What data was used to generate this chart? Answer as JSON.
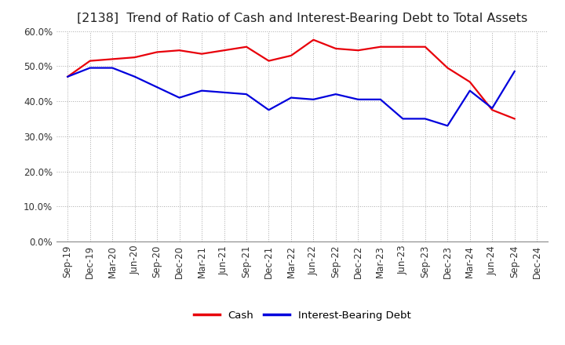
{
  "title": "[2138]  Trend of Ratio of Cash and Interest-Bearing Debt to Total Assets",
  "labels": [
    "Sep-19",
    "Dec-19",
    "Mar-20",
    "Jun-20",
    "Sep-20",
    "Dec-20",
    "Mar-21",
    "Jun-21",
    "Sep-21",
    "Dec-21",
    "Mar-22",
    "Jun-22",
    "Sep-22",
    "Dec-22",
    "Mar-23",
    "Jun-23",
    "Sep-23",
    "Dec-23",
    "Mar-24",
    "Jun-24",
    "Sep-24",
    "Dec-24"
  ],
  "cash": [
    47.0,
    51.5,
    52.0,
    52.5,
    54.0,
    54.5,
    53.5,
    54.5,
    55.5,
    51.5,
    53.0,
    57.5,
    55.0,
    54.5,
    55.5,
    55.5,
    55.5,
    49.5,
    45.5,
    37.5,
    35.0,
    null
  ],
  "ibd": [
    47.0,
    49.5,
    49.5,
    47.0,
    44.0,
    41.0,
    43.0,
    42.5,
    42.0,
    37.5,
    41.0,
    40.5,
    42.0,
    40.5,
    40.5,
    35.0,
    35.0,
    33.0,
    43.0,
    38.0,
    48.5,
    null
  ],
  "cash_color": "#e8000a",
  "ibd_color": "#0000dd",
  "ylim_min": 0.0,
  "ylim_max": 0.6,
  "yticks": [
    0.0,
    0.1,
    0.2,
    0.3,
    0.4,
    0.5,
    0.6
  ],
  "background_color": "#ffffff",
  "grid_color": "#aaaaaa",
  "title_fontsize": 11.5,
  "tick_fontsize": 8.5,
  "legend_labels": [
    "Cash",
    "Interest-Bearing Debt"
  ],
  "line_width": 1.6
}
